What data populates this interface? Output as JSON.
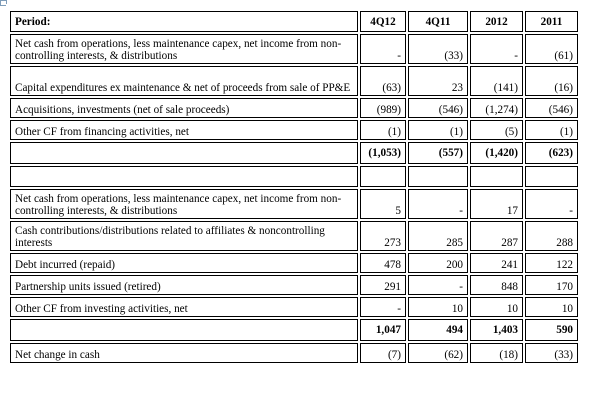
{
  "header": {
    "label": "Period:",
    "cols": [
      "4Q12",
      "4Q11",
      "2012",
      "2011"
    ]
  },
  "rows": [
    {
      "label": "Net cash from operations, less maintenance capex, net income from non-controlling interests, & distributions",
      "values": [
        "-",
        "(33)",
        "-",
        "(61)"
      ]
    },
    {
      "label": "Capital expenditures ex maintenance & net of proceeds from sale of PP&E",
      "values": [
        "(63)",
        "23",
        "(141)",
        "(16)"
      ]
    },
    {
      "label": "Acquisitions, investments (net of sale proceeds)",
      "values": [
        "(989)",
        "(546)",
        "(1,274)",
        "(546)"
      ]
    },
    {
      "label": "Other CF from financing activities, net",
      "values": [
        "(1)",
        "(1)",
        "(5)",
        "(1)"
      ]
    },
    {
      "label": "",
      "values": [
        "(1,053)",
        "(557)",
        "(1,420)",
        "(623)"
      ]
    },
    {
      "label": "",
      "values": [
        "",
        "",
        "",
        ""
      ]
    },
    {
      "label": "Net cash from operations, less maintenance capex, net income from non-controlling interests, & distributions",
      "values": [
        "5",
        "-",
        "17",
        "-"
      ]
    },
    {
      "label": "Cash contributions/distributions related to affiliates & noncontrolling interests",
      "values": [
        "273",
        "285",
        "287",
        "288"
      ]
    },
    {
      "label": "Debt incurred (repaid)",
      "values": [
        "478",
        "200",
        "241",
        "122"
      ]
    },
    {
      "label": "Partnership units  issued (retired)",
      "values": [
        "291",
        "-",
        "848",
        "170"
      ]
    },
    {
      "label": "Other CF from investing activities, net",
      "values": [
        "-",
        "10",
        "10",
        "10"
      ]
    },
    {
      "label": "",
      "values": [
        "1,047",
        "494",
        "1,403",
        "590"
      ]
    },
    {
      "label": "Net change in cash",
      "values": [
        "(7)",
        "(62)",
        "(18)",
        "(33)"
      ]
    }
  ]
}
